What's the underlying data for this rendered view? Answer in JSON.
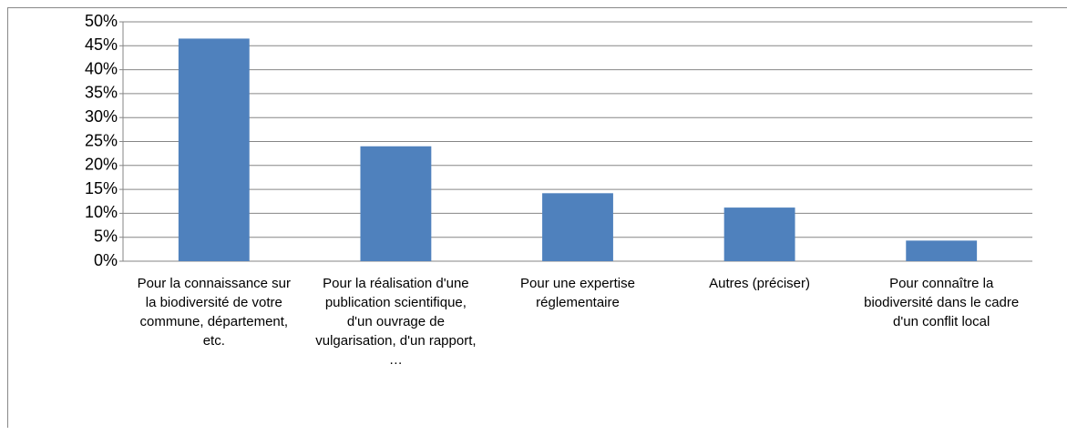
{
  "chart_data": {
    "type": "bar",
    "categories": [
      "Pour la connaissance sur la biodiversité de votre commune, département, etc.",
      "Pour la réalisation d'une publication scientifique, d'un ouvrage de vulgarisation, d'un rapport, …",
      "Pour une expertise réglementaire",
      "Autres (préciser)",
      "Pour connaître la biodiversité dans le cadre d'un conflit local"
    ],
    "values": [
      46.5,
      24,
      14.2,
      11.2,
      4.3
    ],
    "color": "#4f81bd",
    "ylim": [
      0,
      50
    ],
    "yticks": [
      {
        "value": 0,
        "label": "0%"
      },
      {
        "value": 5,
        "label": "5%"
      },
      {
        "value": 10,
        "label": "10%"
      },
      {
        "value": 15,
        "label": "15%"
      },
      {
        "value": 20,
        "label": "20%"
      },
      {
        "value": 25,
        "label": "25%"
      },
      {
        "value": 30,
        "label": "30%"
      },
      {
        "value": 35,
        "label": "35%"
      },
      {
        "value": 40,
        "label": "40%"
      },
      {
        "value": 45,
        "label": "45%"
      },
      {
        "value": 50,
        "label": "50%"
      }
    ],
    "grid": true
  }
}
